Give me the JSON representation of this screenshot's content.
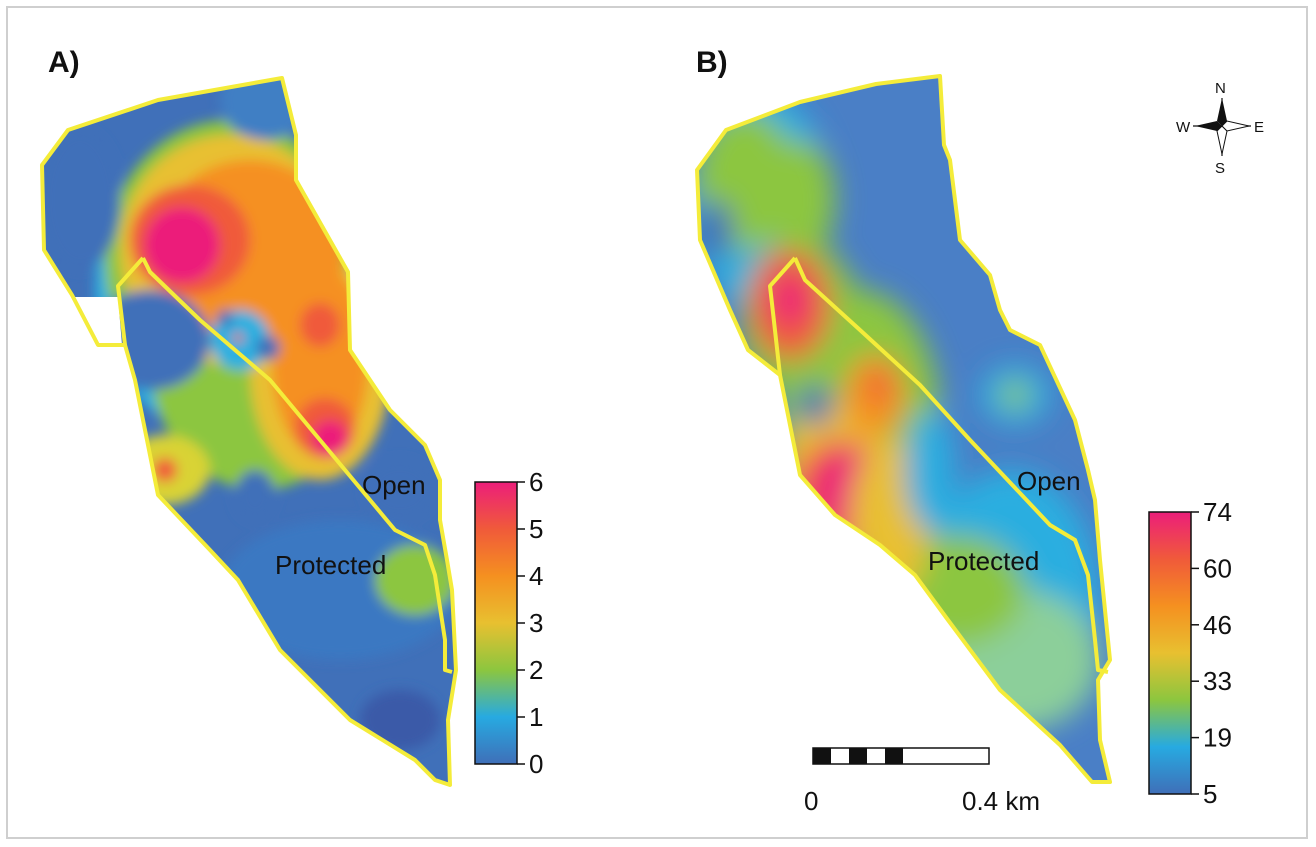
{
  "panels": [
    {
      "label": "A)",
      "zones": {
        "open": "Open",
        "protected": "Protected"
      },
      "colorbar": {
        "ticks": [
          "6",
          "5",
          "4",
          "3",
          "2",
          "1",
          "0"
        ],
        "colors": [
          "#ec1e7a",
          "#f05a3a",
          "#f59020",
          "#e8c030",
          "#8cc63f",
          "#27aae1",
          "#3f6fb8"
        ]
      }
    },
    {
      "label": "B)",
      "zones": {
        "open": "Open",
        "protected": "Protected"
      },
      "colorbar": {
        "ticks": [
          "74",
          "60",
          "46",
          "33",
          "19",
          "5"
        ],
        "colors": [
          "#ec1e7a",
          "#f05a3a",
          "#f59020",
          "#e8c030",
          "#8cc63f",
          "#27aae1",
          "#3f6fb8"
        ]
      }
    }
  ],
  "scale_bar": {
    "start": "0",
    "end": "0.4 km"
  },
  "compass": {
    "n": "N",
    "s": "S",
    "e": "E",
    "w": "W"
  },
  "colors": {
    "boundary": "#f4ec3a",
    "low": "#3f6fb8",
    "mid": "#8cc63f",
    "high": "#ec1e7a"
  }
}
